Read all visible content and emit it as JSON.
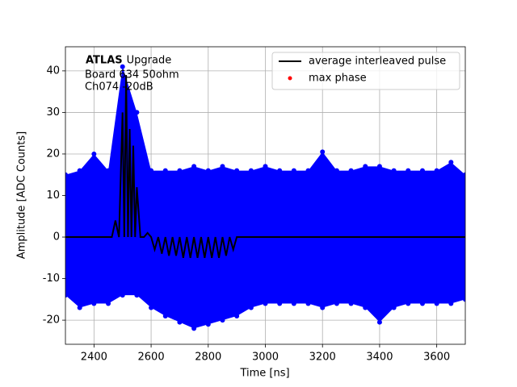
{
  "chart_data": {
    "type": "scatter",
    "xlabel": "Time [ns]",
    "ylabel": "Amplitude [ADC Counts]",
    "annotations": [
      "ATLAS",
      "Upgrade",
      "Board 634 50ohm",
      "Ch074 -20dB"
    ],
    "xlim": [
      2300,
      3700
    ],
    "xticks": [
      2400,
      2600,
      2800,
      3000,
      3200,
      3400,
      3600
    ],
    "ylim": [
      -25.8,
      45.8
    ],
    "yticks": [
      -20,
      -10,
      0,
      10,
      20,
      30,
      40
    ],
    "grid": true,
    "legend": "upper right",
    "samples": {
      "color": "#0000ff",
      "x": [
        2300,
        2350,
        2400,
        2450,
        2500,
        2550,
        2600,
        2650,
        2700,
        2750,
        2800,
        2850,
        2900,
        2950,
        3000,
        3050,
        3100,
        3150,
        3200,
        3250,
        3300,
        3350,
        3400,
        3450,
        3500,
        3550,
        3600,
        3650,
        3700
      ],
      "upper": [
        15,
        16,
        20,
        16,
        41,
        30,
        16,
        16,
        16,
        17,
        16,
        17,
        16,
        16,
        17,
        16,
        16,
        16,
        20.5,
        16,
        16,
        17,
        17,
        16,
        16,
        16,
        16,
        18,
        15
      ],
      "lower": [
        -14,
        -17,
        -16,
        -16,
        -14,
        -14,
        -17,
        -19,
        -20.5,
        -22,
        -21,
        -20,
        -19,
        -17,
        -16,
        -16,
        -16,
        -16,
        -17,
        -16,
        -16,
        -17,
        -20.5,
        -17,
        -16,
        -16,
        -16,
        -16,
        -15
      ]
    },
    "series": [
      {
        "name": "average interleaved pulse",
        "color": "#000000",
        "kind": "line",
        "x": [
          2300,
          2350,
          2400,
          2450,
          2462.5,
          2475,
          2487.5,
          2500,
          2506,
          2512.5,
          2519,
          2525,
          2531,
          2537.5,
          2544,
          2550,
          2562.5,
          2575,
          2587.5,
          2600,
          2612.5,
          2625,
          2637.5,
          2650,
          2662.5,
          2675,
          2687.5,
          2700,
          2712.5,
          2725,
          2737.5,
          2750,
          2762.5,
          2775,
          2787.5,
          2800,
          2812.5,
          2825,
          2837.5,
          2850,
          2862.5,
          2875,
          2887.5,
          2900,
          2950,
          3000,
          3100,
          3200,
          3300,
          3400,
          3500,
          3600,
          3700
        ],
        "values": [
          0,
          0,
          0,
          0,
          0,
          4,
          0,
          30,
          0,
          39,
          0,
          26,
          0,
          22,
          0,
          12,
          0,
          0,
          1,
          0,
          -3,
          0,
          -4,
          0,
          -4.5,
          0,
          -4.5,
          0,
          -5,
          0,
          -5,
          0,
          -5,
          0,
          -5,
          0,
          -5,
          0,
          -5,
          0,
          -4.5,
          0,
          -3,
          0,
          0,
          0,
          0,
          0,
          0,
          0,
          0,
          0,
          0
        ]
      },
      {
        "name": "max phase",
        "color": "#ff0000",
        "kind": "scatter",
        "x": [],
        "values": []
      }
    ]
  }
}
